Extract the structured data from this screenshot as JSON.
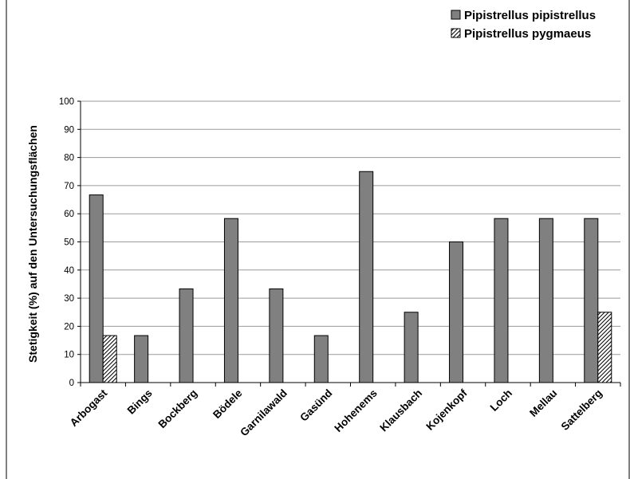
{
  "chart_data": {
    "type": "bar",
    "categories": [
      "Arbogast",
      "Bings",
      "Bockberg",
      "Bödele",
      "Garnilawald",
      "Gasünd",
      "Hohenems",
      "Klausbach",
      "Kojenkopf",
      "Loch",
      "Mellau",
      "Sattelberg"
    ],
    "series": [
      {
        "name": "Pipistrellus pipistrellus",
        "values": [
          66.7,
          16.7,
          33.3,
          58.3,
          33.3,
          16.7,
          75,
          25,
          50,
          58.3,
          58.3,
          58.3
        ],
        "color": "#808080",
        "pattern": "solid"
      },
      {
        "name": "Pipistrellus pygmaeus",
        "values": [
          16.7,
          0,
          0,
          0,
          0,
          0,
          0,
          0,
          0,
          0,
          0,
          25
        ],
        "color": "#ffffff",
        "pattern": "diagonal-hatch"
      }
    ],
    "ylabel": "Stetigkeit (%) auf den Untersuchungsflächen",
    "xlabel": "",
    "ylim": [
      0,
      100
    ],
    "yticks": [
      0,
      10,
      20,
      30,
      40,
      50,
      60,
      70,
      80,
      90,
      100
    ],
    "grid": true,
    "legend": "top-right"
  }
}
